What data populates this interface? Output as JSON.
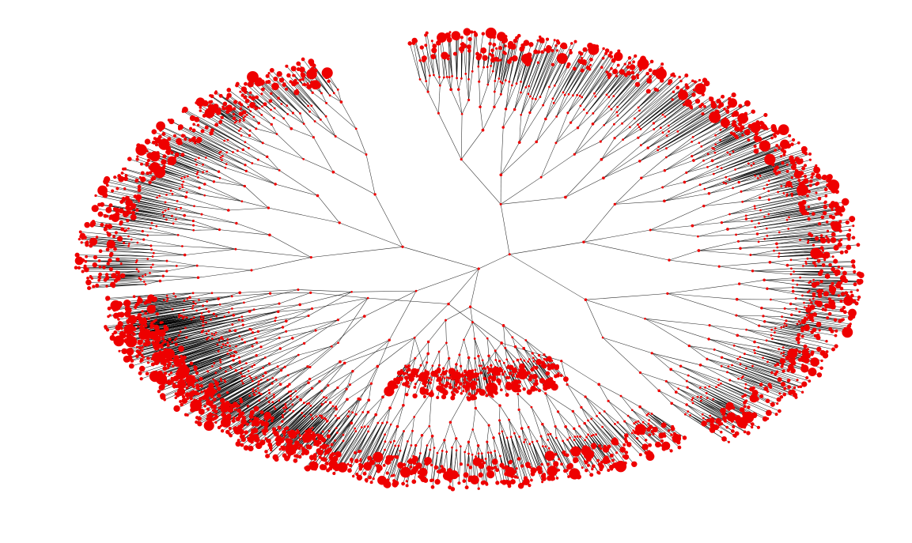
{
  "diagram": {
    "type": "radial-tree",
    "labels_shown": false,
    "background_color": "#ffffff",
    "edge_color": "#000000",
    "node_color": "#ee0000",
    "branches": [
      {
        "name": "",
        "angle_start_deg": 175,
        "angle_end_deg": 248,
        "outer_radius_norm": 0.97
      },
      {
        "name": "",
        "angle_start_deg": 262,
        "angle_end_deg": 408,
        "outer_radius_norm": 1.0
      },
      {
        "name": "",
        "angle_start_deg": 412,
        "angle_end_deg": 530,
        "outer_radius_norm": 0.93
      },
      {
        "name": "",
        "angle_start_deg": 112,
        "angle_end_deg": 172,
        "outer_radius_norm": 0.9
      },
      {
        "name": "",
        "angle_start_deg": 60,
        "angle_end_deg": 110,
        "outer_radius_norm": 0.55
      }
    ]
  }
}
